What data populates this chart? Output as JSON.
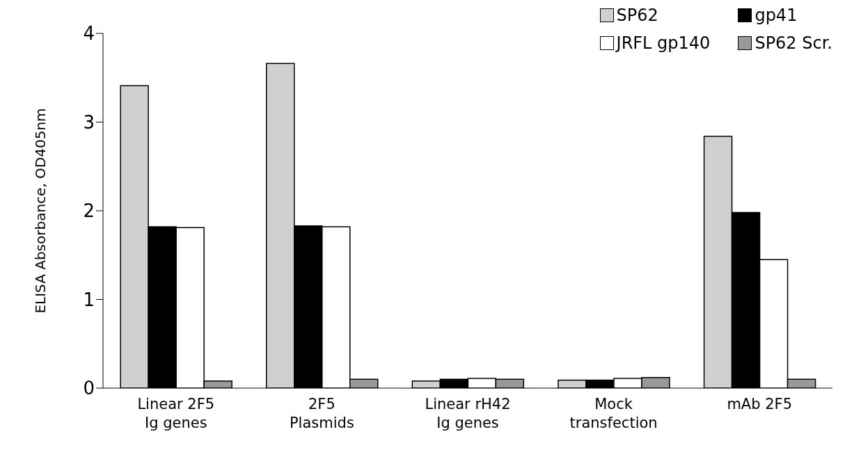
{
  "chart_data": {
    "type": "bar",
    "ylabel": "ELISA Absorbance, OD405nm",
    "categories": [
      "Linear 2F5\nIg genes",
      "2F5\nPlasmids",
      "Linear rH42\nIg genes",
      "Mock\ntransfection",
      "mAb 2F5"
    ],
    "series": [
      {
        "name": "SP62",
        "color": "#d0d0d0",
        "values": [
          3.41,
          3.66,
          0.08,
          0.09,
          2.84
        ]
      },
      {
        "name": "gp41",
        "color": "#000000",
        "values": [
          1.82,
          1.83,
          0.1,
          0.09,
          1.98
        ]
      },
      {
        "name": "JRFL gp140",
        "color": "#ffffff",
        "values": [
          1.81,
          1.82,
          0.11,
          0.11,
          1.45
        ]
      },
      {
        "name": "SP62 Scr.",
        "color": "#999999",
        "values": [
          0.08,
          0.1,
          0.1,
          0.12,
          0.1
        ]
      }
    ],
    "ylim": [
      0,
      4
    ],
    "yticks": [
      0,
      1,
      2,
      3,
      4
    ],
    "grid": false,
    "legend": "top right"
  }
}
